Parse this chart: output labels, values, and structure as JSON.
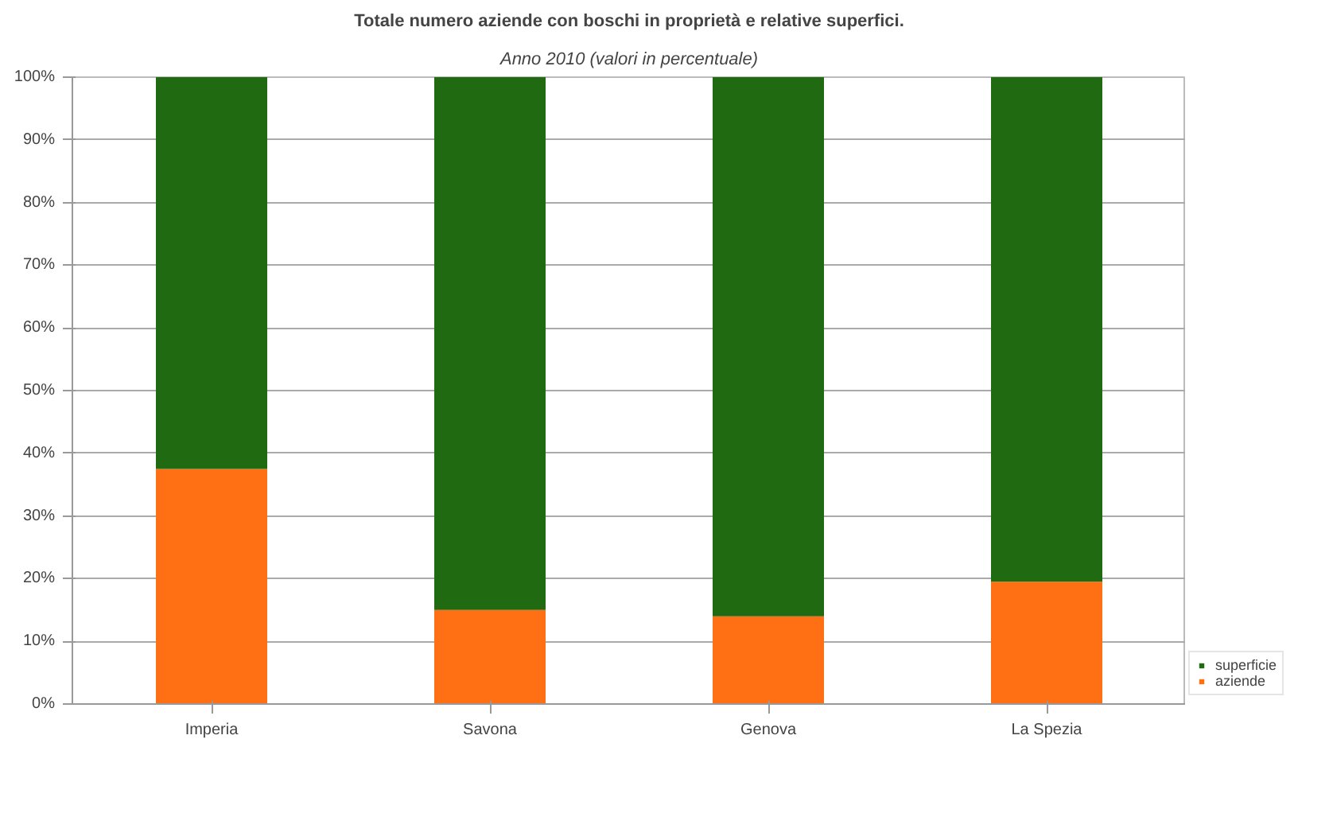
{
  "chart_data": {
    "type": "bar",
    "stacked": true,
    "title": "Totale numero aziende con boschi in proprietà e relative superfici.",
    "subtitle": "Anno 2010 (valori in percentuale)",
    "categories": [
      "Imperia",
      "Savona",
      "Genova",
      "La Spezia"
    ],
    "series": [
      {
        "name": "aziende",
        "color": "#ff6f14",
        "values": [
          37.5,
          15,
          14,
          19.5
        ]
      },
      {
        "name": "superficie",
        "color": "#206a12",
        "values": [
          62.5,
          85,
          86,
          80.5
        ]
      }
    ],
    "ylim": [
      0,
      100
    ],
    "yticks": [
      {
        "value": 0,
        "label": "0%"
      },
      {
        "value": 10,
        "label": "10%"
      },
      {
        "value": 20,
        "label": "20%"
      },
      {
        "value": 30,
        "label": "30%"
      },
      {
        "value": 40,
        "label": "40%"
      },
      {
        "value": 50,
        "label": "50%"
      },
      {
        "value": 60,
        "label": "60%"
      },
      {
        "value": 70,
        "label": "70%"
      },
      {
        "value": 80,
        "label": "80%"
      },
      {
        "value": 90,
        "label": "90%"
      },
      {
        "value": 100,
        "label": "100%"
      }
    ],
    "grid": "y",
    "legend": "bottom right"
  }
}
